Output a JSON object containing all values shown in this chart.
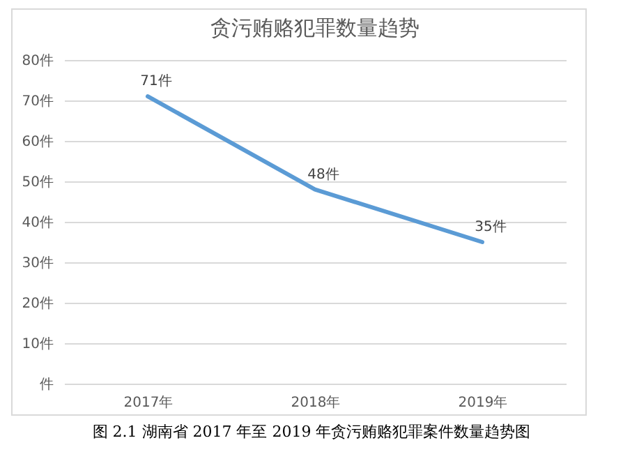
{
  "chart_data": {
    "type": "line",
    "title": "贪污贿赂犯罪数量趋势",
    "categories": [
      "2017年",
      "2018年",
      "2019年"
    ],
    "series": [
      {
        "color": "#5b9bd5",
        "values": [
          71,
          48,
          35
        ]
      }
    ],
    "value_labels": [
      "71件",
      "48件",
      "35件"
    ],
    "ylim": [
      0,
      80
    ],
    "yticks": [
      {
        "value": 0,
        "label": "件"
      },
      {
        "value": 10,
        "label": "10件"
      },
      {
        "value": 20,
        "label": "20件"
      },
      {
        "value": 30,
        "label": "30件"
      },
      {
        "value": 40,
        "label": "40件"
      },
      {
        "value": 50,
        "label": "50件"
      },
      {
        "value": 60,
        "label": "60件"
      },
      {
        "value": 70,
        "label": "70件"
      },
      {
        "value": 80,
        "label": "80件"
      }
    ],
    "grid": "y",
    "marker": "none",
    "line_style": "solid",
    "annotations": [
      "图 2.1 湖南省 2017 年至 2019 年贪污贿赂犯罪案件数量趋势图"
    ]
  }
}
